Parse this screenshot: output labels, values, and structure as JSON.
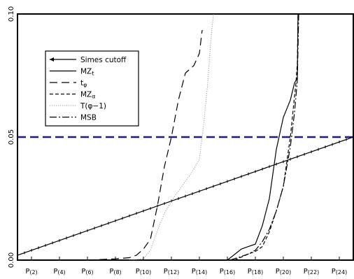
{
  "chart_data": {
    "type": "line",
    "title": "",
    "xlabel": "",
    "ylabel": "",
    "xlim": [
      1,
      25
    ],
    "ylim": [
      0,
      0.1
    ],
    "x_ticks": [
      {
        "x": 2,
        "label": "P",
        "sub": "(2)"
      },
      {
        "x": 4,
        "label": "P",
        "sub": "(4)"
      },
      {
        "x": 6,
        "label": "P",
        "sub": "(6)"
      },
      {
        "x": 8,
        "label": "P",
        "sub": "(8)"
      },
      {
        "x": 10,
        "label": "P",
        "sub": "(10)"
      },
      {
        "x": 12,
        "label": "P",
        "sub": "(12)"
      },
      {
        "x": 14,
        "label": "P",
        "sub": "(14)"
      },
      {
        "x": 16,
        "label": "P",
        "sub": "(16)"
      },
      {
        "x": 18,
        "label": "P",
        "sub": "(18)"
      },
      {
        "x": 20,
        "label": "P",
        "sub": "(20)"
      },
      {
        "x": 22,
        "label": "P",
        "sub": "(22)"
      },
      {
        "x": 24,
        "label": "P",
        "sub": "(24)"
      }
    ],
    "y_ticks": [
      {
        "y": 0.0,
        "label": "0.00"
      },
      {
        "y": 0.05,
        "label": "0.05"
      },
      {
        "y": 0.1,
        "label": "0.10"
      }
    ],
    "reference_line": {
      "y": 0.05,
      "color": "#1a1a8c"
    },
    "legend": {
      "position": "top-left"
    },
    "series": [
      {
        "name": "Simes cutoff",
        "name_sub": "",
        "style": "solid-ticked",
        "color": "#000000",
        "x": [
          1,
          25
        ],
        "y": [
          0.002,
          0.05
        ],
        "marker_step": 0.5
      },
      {
        "name": "MZ",
        "name_sub": "t",
        "style": "solid",
        "color": "#000000",
        "x": [
          16.0,
          17.0,
          17.5,
          18.0,
          18.5,
          19.0,
          19.5,
          20.0,
          20.5,
          20.8,
          21.0,
          21.05
        ],
        "y": [
          0.0,
          0.0045,
          0.0055,
          0.0065,
          0.014,
          0.025,
          0.045,
          0.058,
          0.065,
          0.072,
          0.074,
          0.1
        ]
      },
      {
        "name": "t",
        "name_sub": "φ",
        "style": "longdash",
        "color": "#000000",
        "x": [
          6.0,
          8.0,
          9.0,
          9.5,
          10.0,
          10.5,
          11.0,
          11.5,
          12.0,
          12.5,
          13.0,
          13.6,
          14.0,
          14.2
        ],
        "y": [
          0.0,
          0.0005,
          0.001,
          0.002,
          0.0045,
          0.0085,
          0.022,
          0.038,
          0.05,
          0.065,
          0.076,
          0.079,
          0.084,
          0.0935
        ]
      },
      {
        "name": "MZ",
        "name_sub": "α",
        "style": "shortdash",
        "color": "#000000",
        "x": [
          16.5,
          17.5,
          18.0,
          18.5,
          19.0,
          19.5,
          20.0,
          20.5,
          20.9,
          21.0,
          21.05
        ],
        "y": [
          0.0,
          0.0025,
          0.0035,
          0.0055,
          0.0115,
          0.02,
          0.03,
          0.05,
          0.072,
          0.08,
          0.1
        ]
      },
      {
        "name": "T(φ−1)",
        "name_sub": "",
        "style": "dotted",
        "color": "#9a9a9a",
        "x": [
          9.0,
          10.0,
          10.5,
          11.0,
          11.5,
          12.0,
          12.5,
          13.0,
          13.5,
          14.0,
          14.3,
          14.6,
          14.8,
          15.0
        ],
        "y": [
          0.0,
          0.0005,
          0.004,
          0.012,
          0.019,
          0.024,
          0.028,
          0.032,
          0.036,
          0.041,
          0.055,
          0.072,
          0.088,
          0.1
        ]
      },
      {
        "name": "MSB",
        "name_sub": "",
        "style": "dashdot",
        "color": "#000000",
        "x": [
          16.2,
          17.0,
          17.5,
          18.0,
          18.5,
          19.0,
          19.5,
          20.0,
          20.5,
          20.8,
          21.0,
          21.1
        ],
        "y": [
          0.0,
          0.0015,
          0.0025,
          0.004,
          0.0075,
          0.0125,
          0.02,
          0.03,
          0.046,
          0.06,
          0.073,
          0.1
        ]
      }
    ]
  }
}
